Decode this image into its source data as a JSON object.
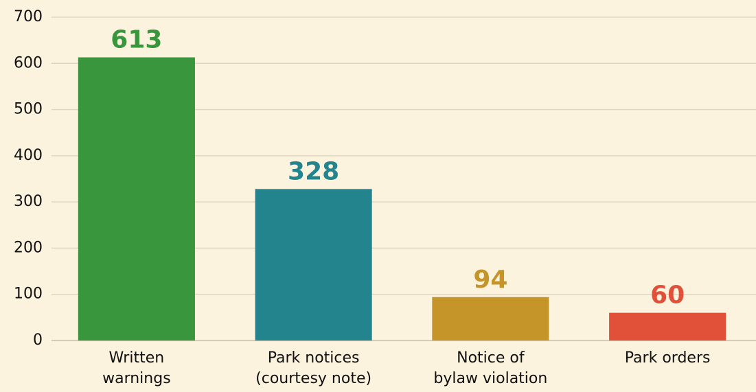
{
  "chart_data": {
    "type": "bar",
    "categories": [
      "Written\nwarnings",
      "Park notices\n(courtesy note)",
      "Notice of\nbylaw violation",
      "Park orders"
    ],
    "values": [
      613,
      328,
      94,
      60
    ],
    "colors": [
      "#3a963c",
      "#23848e",
      "#c6952a",
      "#e1513a"
    ],
    "ylim": [
      0,
      700
    ],
    "yticks": [
      0,
      100,
      200,
      300,
      400,
      500,
      600,
      700
    ],
    "grid": true
  }
}
